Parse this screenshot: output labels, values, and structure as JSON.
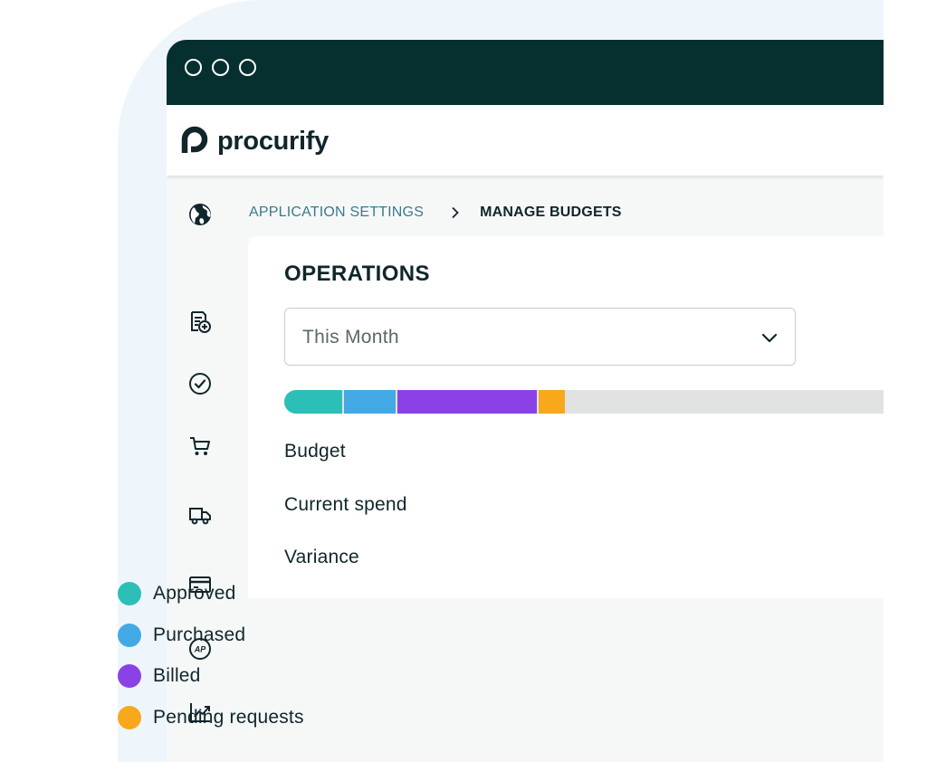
{
  "app": {
    "brand": "procurify"
  },
  "breadcrumb": {
    "parent": "APPLICATION SETTINGS",
    "current": "MANAGE BUDGETS"
  },
  "sidebar": {
    "items": [
      {
        "icon": "globe-icon"
      },
      {
        "icon": "add-request-icon"
      },
      {
        "icon": "approval-check-icon"
      },
      {
        "icon": "cart-icon"
      },
      {
        "icon": "truck-icon"
      },
      {
        "icon": "credit-card-icon"
      },
      {
        "icon": "ap-icon"
      },
      {
        "icon": "analytics-chart-icon"
      },
      {
        "icon": "gear-icon"
      }
    ]
  },
  "budget": {
    "title": "OPERATIONS",
    "period_select": {
      "value": "This Month"
    },
    "spend_breakdown": [
      {
        "key": "approved",
        "fraction": 0.099,
        "color": "#2bbfb7"
      },
      {
        "key": "purchased",
        "fraction": 0.089,
        "color": "#43a9e4"
      },
      {
        "key": "billed",
        "fraction": 0.236,
        "color": "#8a42e6"
      },
      {
        "key": "pending",
        "fraction": 0.044,
        "color": "#f7a81b"
      }
    ],
    "bar_remaining_color": "#e1e3e3",
    "metrics": {
      "budget_label": "Budget",
      "current_spend_label": "Current spend",
      "variance_label": "Variance"
    },
    "legend": [
      {
        "label": "Approved",
        "color": "#2bbfb7"
      },
      {
        "label": "Purchased",
        "color": "#43a9e4"
      },
      {
        "label": "Billed",
        "color": "#8a42e6"
      },
      {
        "label": "Pending requests",
        "color": "#f7a81b"
      }
    ]
  },
  "colors": {
    "titlebar": "#06302f",
    "breadcrumb_link": "#3c7a8a",
    "text": "#10262b"
  }
}
